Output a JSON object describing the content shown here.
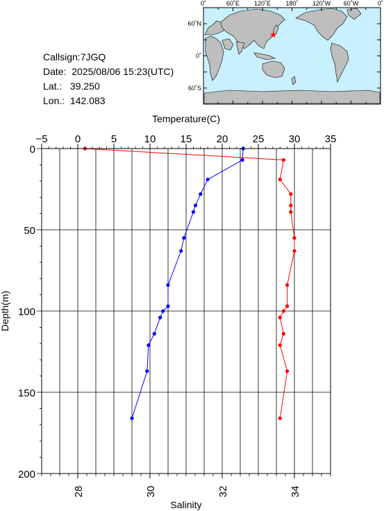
{
  "station": {
    "callsign": "Callsign:7JGQ",
    "date": "Date:  2025/08/06 15:23(UTC)",
    "lat": "Lat.:   39.250",
    "lon": "Lon.:  142.083"
  },
  "map": {
    "top_labels": [
      "0˚",
      "60˚E",
      "120˚E",
      "180˚",
      "120˚W",
      "60˚W",
      "0˚"
    ],
    "left_labels": [
      "60˚N",
      "0˚",
      "60˚S"
    ],
    "station_marker": {
      "lat": 39.25,
      "lon": 142.083
    },
    "colors": {
      "ocean": "#c8f0ff",
      "land": "#bebebe",
      "marker": "#ff0000"
    }
  },
  "chart_data": {
    "type": "line",
    "ylabel": "Depth(m)",
    "ylim": [
      200,
      0
    ],
    "y_ticks": [
      "0",
      "50",
      "100",
      "150",
      "200"
    ],
    "temperature_axis": {
      "label": "Temperature(C)",
      "range": [
        -5,
        35
      ],
      "ticks": [
        "−5",
        "0",
        "5",
        "10",
        "15",
        "20",
        "25",
        "30",
        "35"
      ]
    },
    "salinity_axis": {
      "label": "Salinity",
      "range": [
        27,
        35
      ],
      "ticks": [
        "28",
        "30",
        "32",
        "34"
      ]
    },
    "grid": true,
    "series": [
      {
        "axis": "temperature",
        "color": "#0000ff",
        "points": [
          {
            "value": 22.9,
            "depth": 0
          },
          {
            "value": 22.8,
            "depth": 7
          },
          {
            "value": 18.0,
            "depth": 19
          },
          {
            "value": 17.0,
            "depth": 28
          },
          {
            "value": 16.3,
            "depth": 35
          },
          {
            "value": 16.0,
            "depth": 39
          },
          {
            "value": 14.7,
            "depth": 55
          },
          {
            "value": 14.3,
            "depth": 63
          },
          {
            "value": 12.5,
            "depth": 84
          },
          {
            "value": 12.5,
            "depth": 97
          },
          {
            "value": 11.8,
            "depth": 100
          },
          {
            "value": 11.4,
            "depth": 104
          },
          {
            "value": 10.6,
            "depth": 114
          },
          {
            "value": 9.8,
            "depth": 121
          },
          {
            "value": 9.6,
            "depth": 137
          },
          {
            "value": 7.5,
            "depth": 166
          }
        ]
      },
      {
        "axis": "salinity",
        "color": "#ff0000",
        "points": [
          {
            "value": 28.2,
            "depth": 0
          },
          {
            "value": 33.7,
            "depth": 7
          },
          {
            "value": 33.6,
            "depth": 19
          },
          {
            "value": 33.9,
            "depth": 28
          },
          {
            "value": 33.9,
            "depth": 35
          },
          {
            "value": 33.9,
            "depth": 39
          },
          {
            "value": 34.0,
            "depth": 55
          },
          {
            "value": 34.0,
            "depth": 63
          },
          {
            "value": 33.8,
            "depth": 84
          },
          {
            "value": 33.8,
            "depth": 97
          },
          {
            "value": 33.7,
            "depth": 100
          },
          {
            "value": 33.6,
            "depth": 104
          },
          {
            "value": 33.7,
            "depth": 114
          },
          {
            "value": 33.6,
            "depth": 121
          },
          {
            "value": 33.8,
            "depth": 137
          },
          {
            "value": 33.6,
            "depth": 166
          }
        ]
      }
    ]
  }
}
